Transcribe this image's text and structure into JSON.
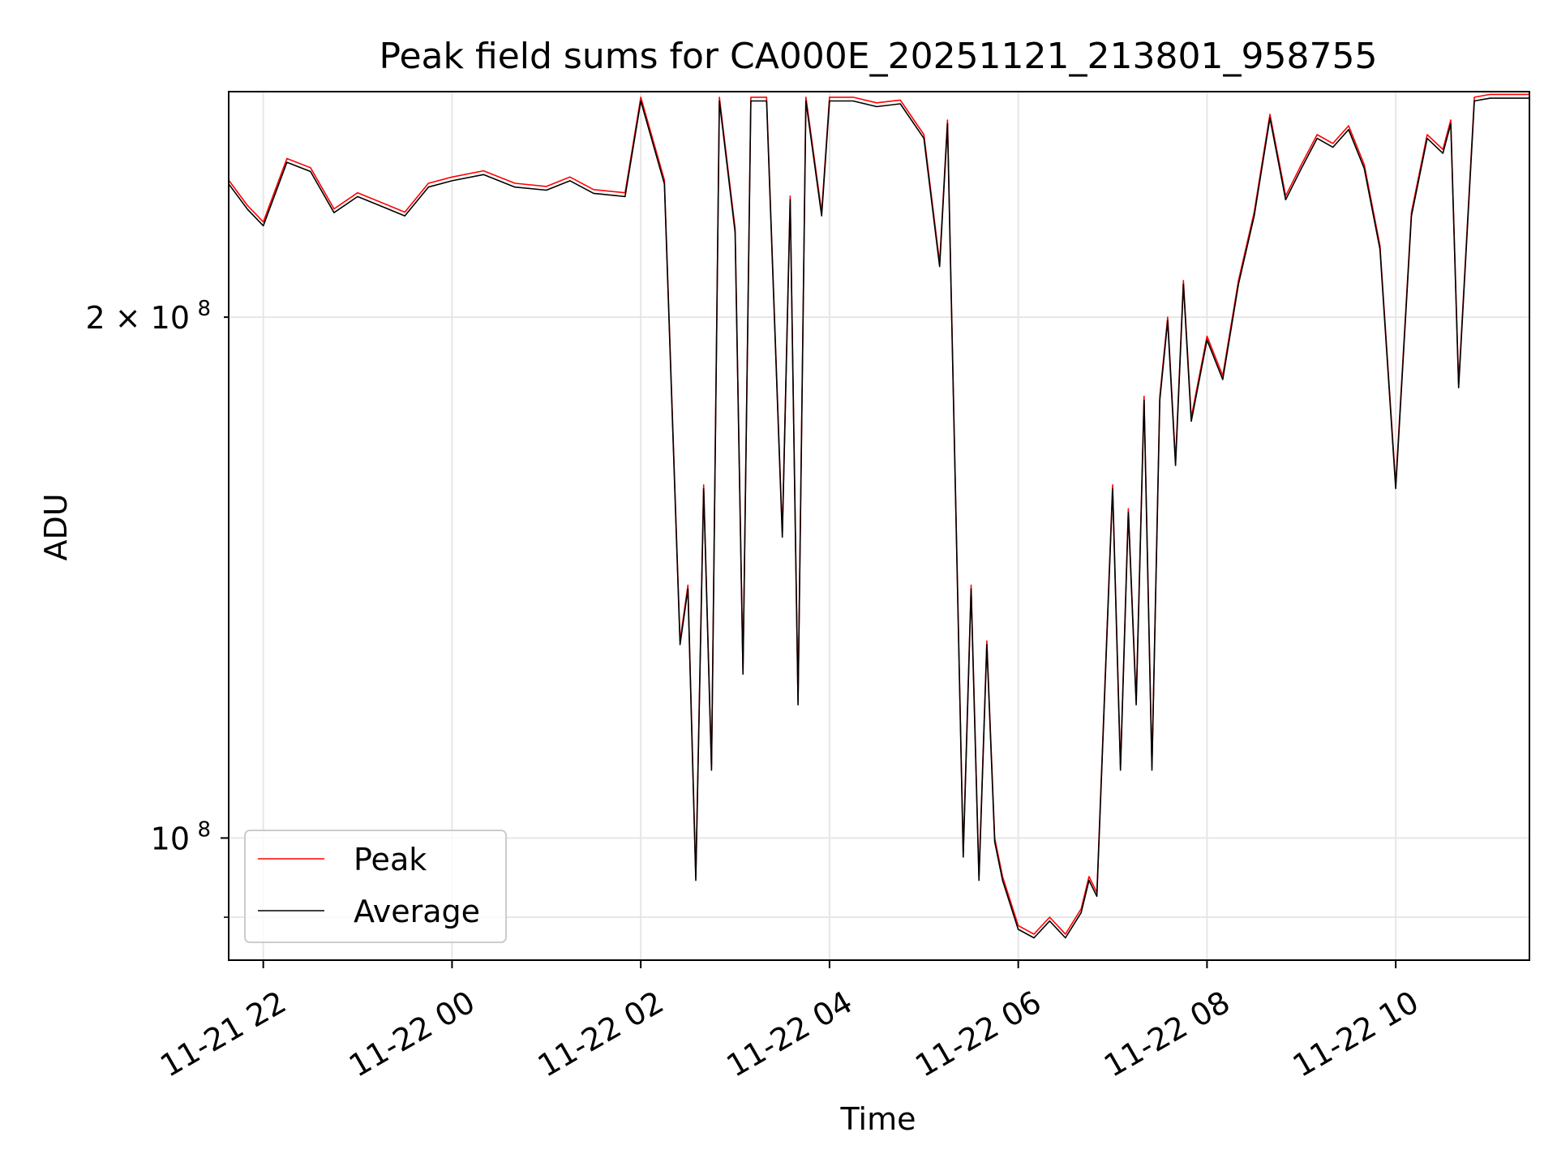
{
  "chart_data": {
    "type": "line",
    "title": "Peak field sums for CA000E_20251121_213801_958755",
    "xlabel": "Time",
    "ylabel": "ADU",
    "y_scale": "log",
    "ylim": [
      85000000,
      270000000
    ],
    "xlim": [
      "2025-11-21 21:38",
      "2025-11-22 11:25"
    ],
    "x_ticks": [
      {
        "value": "2025-11-21 22:00",
        "label": "11-21 22"
      },
      {
        "value": "2025-11-22 00:00",
        "label": "11-22 00"
      },
      {
        "value": "2025-11-22 02:00",
        "label": "11-22 02"
      },
      {
        "value": "2025-11-22 04:00",
        "label": "11-22 04"
      },
      {
        "value": "2025-11-22 06:00",
        "label": "11-22 06"
      },
      {
        "value": "2025-11-22 08:00",
        "label": "11-22 08"
      },
      {
        "value": "2025-11-22 10:00",
        "label": "11-22 10"
      }
    ],
    "y_ticks": [
      {
        "value": 100000000,
        "label": "10",
        "exp": "8",
        "major": true
      },
      {
        "value": 200000000,
        "label": "2 × 10",
        "exp": "8",
        "major": false
      }
    ],
    "y_minor_ticks": [
      90000000
    ],
    "grid": true,
    "legend_position": "lower-left",
    "colors": {
      "Peak": "#ff0000",
      "Average": "#000000",
      "grid": "#e6e6e6"
    },
    "series": [
      {
        "name": "Peak",
        "color": "#ff0000"
      },
      {
        "name": "Average",
        "color": "#000000"
      }
    ],
    "x": [
      "2025-11-21 21:38",
      "2025-11-21 21:50",
      "2025-11-21 22:00",
      "2025-11-21 22:15",
      "2025-11-21 22:30",
      "2025-11-21 22:45",
      "2025-11-21 23:00",
      "2025-11-21 23:15",
      "2025-11-21 23:30",
      "2025-11-21 23:45",
      "2025-11-22 00:00",
      "2025-11-22 00:20",
      "2025-11-22 00:40",
      "2025-11-22 01:00",
      "2025-11-22 01:15",
      "2025-11-22 01:30",
      "2025-11-22 01:50",
      "2025-11-22 02:00",
      "2025-11-22 02:15",
      "2025-11-22 02:25",
      "2025-11-22 02:30",
      "2025-11-22 02:35",
      "2025-11-22 02:40",
      "2025-11-22 02:45",
      "2025-11-22 02:50",
      "2025-11-22 03:00",
      "2025-11-22 03:05",
      "2025-11-22 03:10",
      "2025-11-22 03:20",
      "2025-11-22 03:30",
      "2025-11-22 03:35",
      "2025-11-22 03:40",
      "2025-11-22 03:45",
      "2025-11-22 03:55",
      "2025-11-22 04:00",
      "2025-11-22 04:15",
      "2025-11-22 04:30",
      "2025-11-22 04:45",
      "2025-11-22 05:00",
      "2025-11-22 05:10",
      "2025-11-22 05:15",
      "2025-11-22 05:20",
      "2025-11-22 05:25",
      "2025-11-22 05:30",
      "2025-11-22 05:35",
      "2025-11-22 05:40",
      "2025-11-22 05:45",
      "2025-11-22 05:50",
      "2025-11-22 06:00",
      "2025-11-22 06:10",
      "2025-11-22 06:20",
      "2025-11-22 06:30",
      "2025-11-22 06:40",
      "2025-11-22 06:45",
      "2025-11-22 06:50",
      "2025-11-22 07:00",
      "2025-11-22 07:05",
      "2025-11-22 07:10",
      "2025-11-22 07:15",
      "2025-11-22 07:20",
      "2025-11-22 07:25",
      "2025-11-22 07:30",
      "2025-11-22 07:35",
      "2025-11-22 07:40",
      "2025-11-22 07:45",
      "2025-11-22 07:50",
      "2025-11-22 08:00",
      "2025-11-22 08:10",
      "2025-11-22 08:20",
      "2025-11-22 08:30",
      "2025-11-22 08:40",
      "2025-11-22 08:50",
      "2025-11-22 09:00",
      "2025-11-22 09:10",
      "2025-11-22 09:20",
      "2025-11-22 09:30",
      "2025-11-22 09:40",
      "2025-11-22 09:50",
      "2025-11-22 10:00",
      "2025-11-22 10:10",
      "2025-11-22 10:20",
      "2025-11-22 10:30",
      "2025-11-22 10:35",
      "2025-11-22 10:40",
      "2025-11-22 10:50",
      "2025-11-22 11:00",
      "2025-11-22 11:25"
    ],
    "values": [
      240000000,
      232000000,
      227000000,
      247000000,
      244000000,
      231000000,
      236000000,
      233000000,
      230000000,
      239000000,
      241000000,
      243000000,
      239000000,
      238000000,
      241000000,
      237000000,
      236000000,
      268000000,
      240000000,
      130000000,
      140000000,
      95000000,
      160000000,
      110000000,
      268000000,
      225000000,
      125000000,
      268000000,
      268000000,
      150000000,
      235000000,
      120000000,
      268000000,
      230000000,
      268000000,
      268000000,
      266000000,
      267000000,
      255000000,
      215000000,
      260000000,
      160000000,
      98000000,
      140000000,
      95000000,
      130000000,
      100000000,
      95000000,
      89000000,
      88000000,
      90000000,
      88000000,
      91000000,
      95000000,
      93000000,
      160000000,
      110000000,
      155000000,
      120000000,
      180000000,
      110000000,
      180000000,
      200000000,
      165000000,
      210000000,
      175000000,
      195000000,
      185000000,
      210000000,
      230000000,
      262000000,
      235000000,
      245000000,
      255000000,
      252000000,
      258000000,
      245000000,
      220000000,
      160000000,
      230000000,
      255000000,
      250000000,
      260000000,
      183000000,
      268000000,
      269000000,
      269000000
    ]
  }
}
